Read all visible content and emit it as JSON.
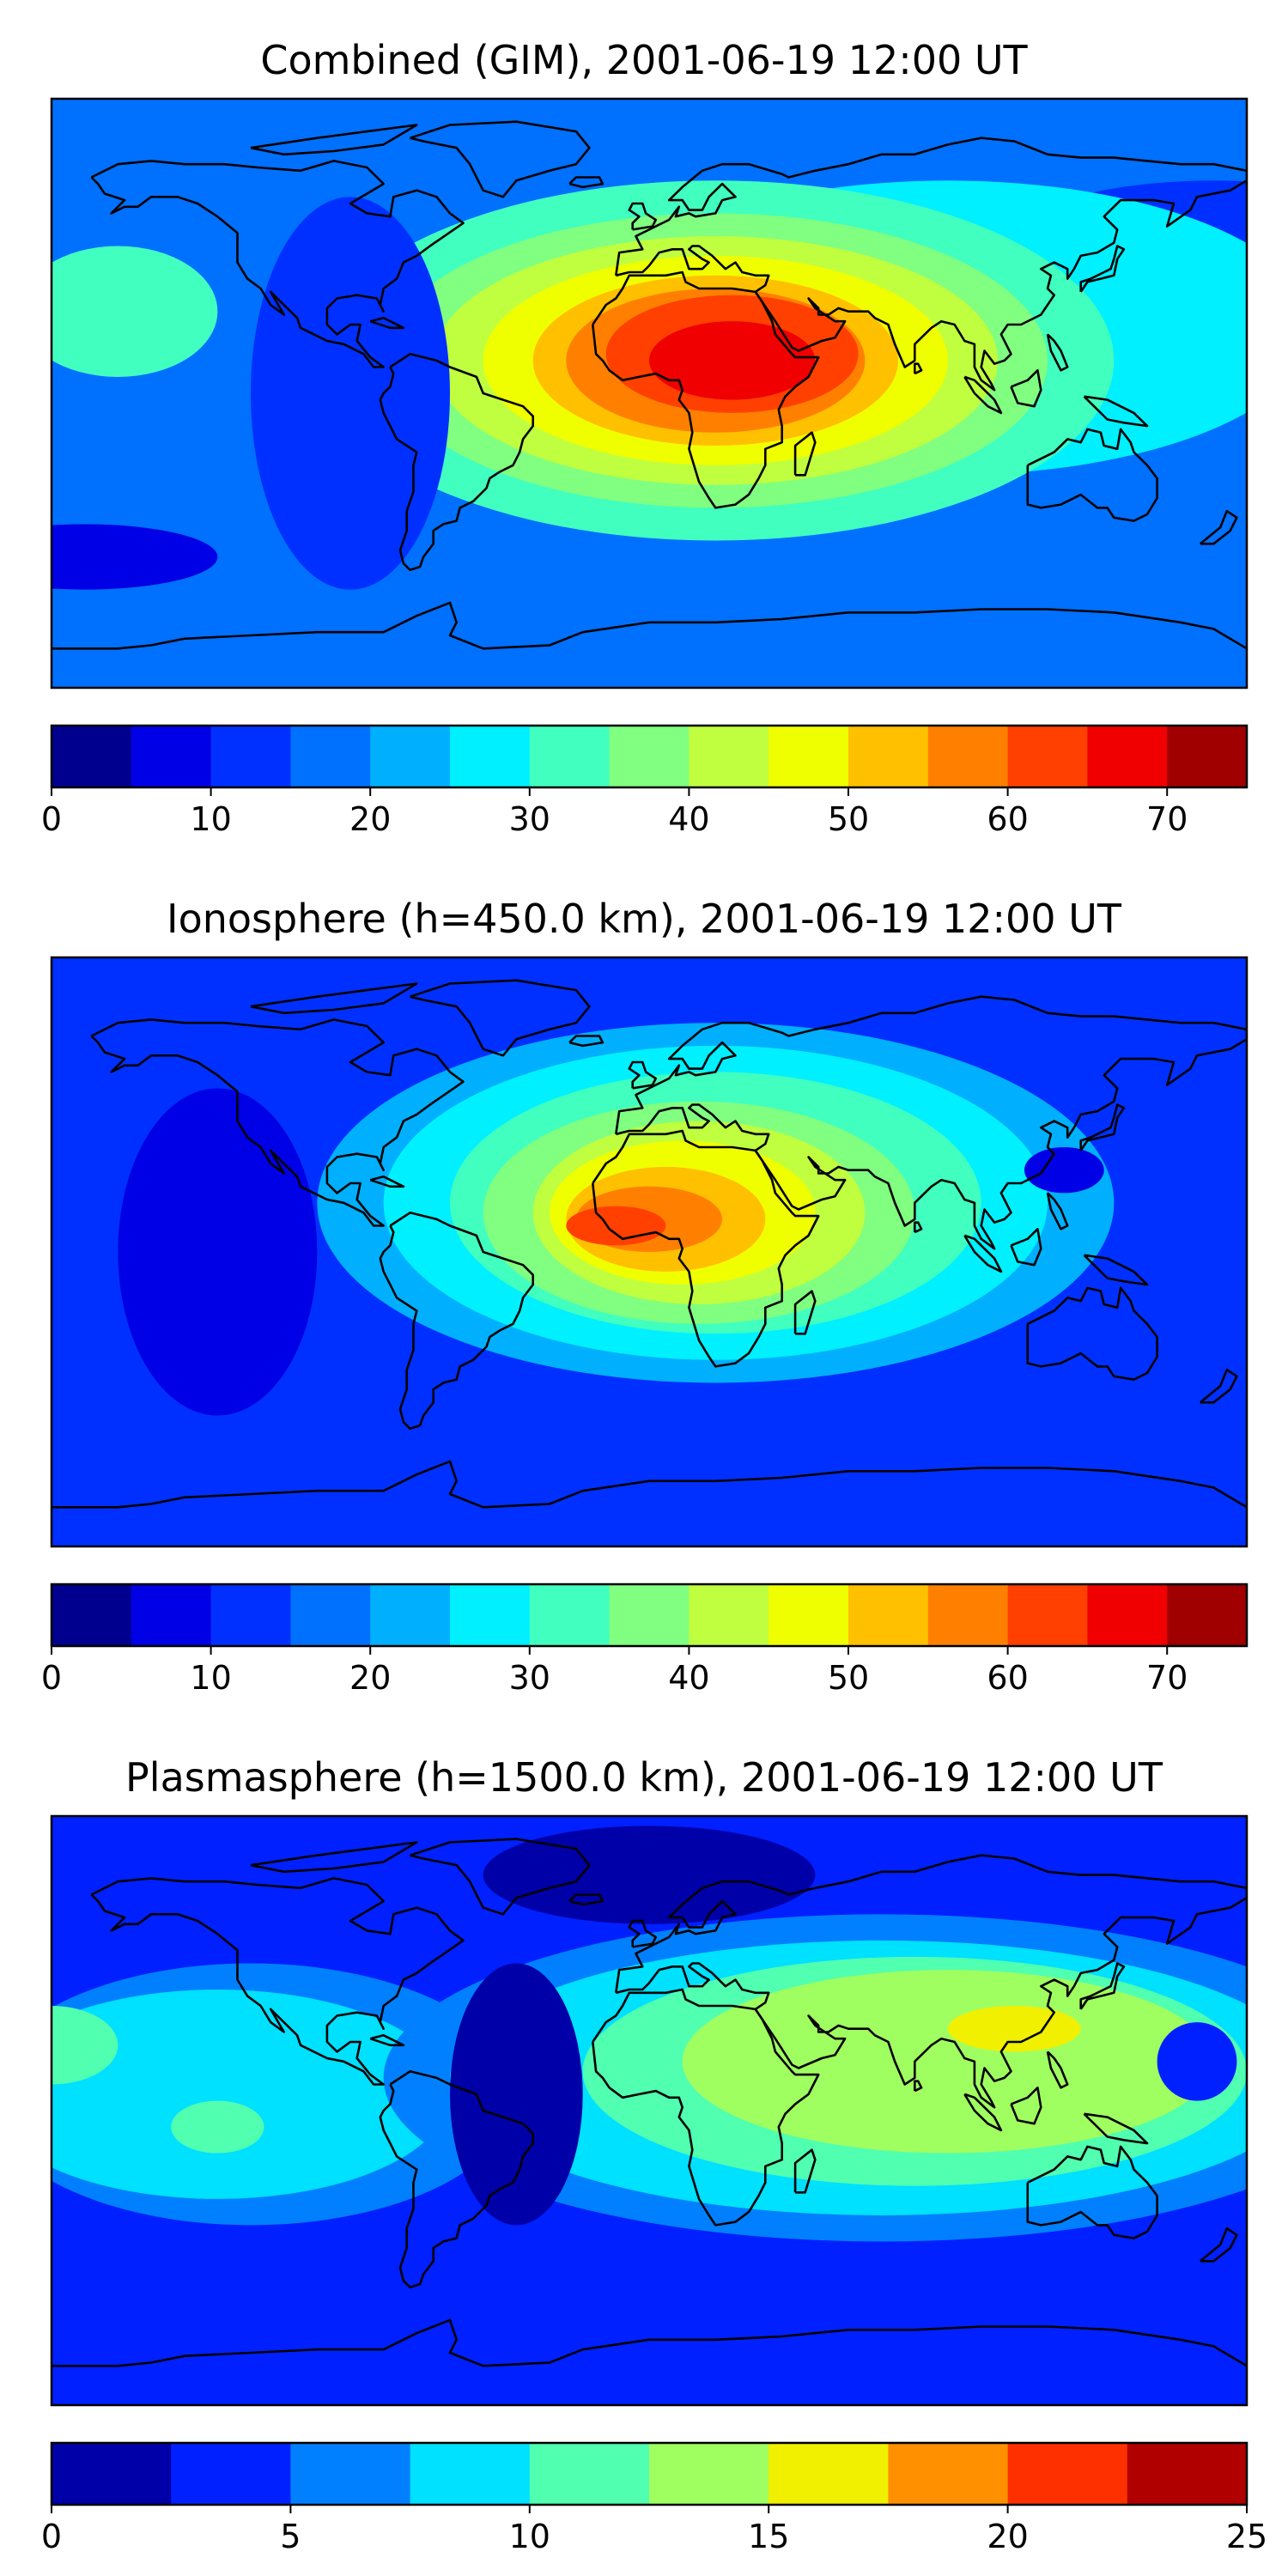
{
  "panels": [
    {
      "title": "Combined (GIM), 2001-06-19 12:00 UT",
      "colorbar": {
        "ticks": [
          "0",
          "10",
          "20",
          "30",
          "40",
          "50",
          "60",
          "70"
        ],
        "vmin": 0,
        "vmax": 75,
        "levels": 15
      },
      "field": {
        "background_level": 3,
        "blobs": [
          {
            "lon": 170,
            "lat": 40,
            "rx": 70,
            "ry": 25,
            "level": 2
          },
          {
            "lon": 90,
            "lat": 20,
            "rx": 110,
            "ry": 45,
            "level": 5
          },
          {
            "lon": -160,
            "lat": 25,
            "rx": 30,
            "ry": 20,
            "level": 6
          },
          {
            "lon": 20,
            "lat": 10,
            "rx": 120,
            "ry": 55,
            "level": 6
          },
          {
            "lon": 20,
            "lat": 10,
            "rx": 100,
            "ry": 45,
            "level": 7
          },
          {
            "lon": 20,
            "lat": 10,
            "rx": 85,
            "ry": 38,
            "level": 8
          },
          {
            "lon": 20,
            "lat": 10,
            "rx": 70,
            "ry": 32,
            "level": 9
          },
          {
            "lon": 20,
            "lat": 10,
            "rx": 55,
            "ry": 26,
            "level": 10
          },
          {
            "lon": 20,
            "lat": 10,
            "rx": 45,
            "ry": 22,
            "level": 11
          },
          {
            "lon": 25,
            "lat": 12,
            "rx": 38,
            "ry": 18,
            "level": 12
          },
          {
            "lon": 25,
            "lat": 10,
            "rx": 25,
            "ry": 12,
            "level": 13
          },
          {
            "lon": -170,
            "lat": -50,
            "rx": 40,
            "ry": 10,
            "level": 1
          },
          {
            "lon": -90,
            "lat": 0,
            "rx": 30,
            "ry": 60,
            "level": 2
          }
        ]
      }
    },
    {
      "title": "Ionosphere  (h=450.0 km), 2001-06-19 12:00 UT",
      "colorbar": {
        "ticks": [
          "0",
          "10",
          "20",
          "30",
          "40",
          "50",
          "60",
          "70"
        ],
        "vmin": 0,
        "vmax": 75,
        "levels": 15
      },
      "field": {
        "background_level": 2,
        "blobs": [
          {
            "lon": -130,
            "lat": 0,
            "rx": 30,
            "ry": 50,
            "level": 1
          },
          {
            "lon": 20,
            "lat": 15,
            "rx": 120,
            "ry": 55,
            "level": 4
          },
          {
            "lon": 20,
            "lat": 15,
            "rx": 100,
            "ry": 48,
            "level": 5
          },
          {
            "lon": 20,
            "lat": 15,
            "rx": 80,
            "ry": 40,
            "level": 6
          },
          {
            "lon": 15,
            "lat": 12,
            "rx": 65,
            "ry": 34,
            "level": 7
          },
          {
            "lon": 15,
            "lat": 12,
            "rx": 50,
            "ry": 28,
            "level": 8
          },
          {
            "lon": 10,
            "lat": 12,
            "rx": 40,
            "ry": 22,
            "level": 9
          },
          {
            "lon": 5,
            "lat": 10,
            "rx": 30,
            "ry": 16,
            "level": 10
          },
          {
            "lon": 0,
            "lat": 10,
            "rx": 22,
            "ry": 10,
            "level": 11
          },
          {
            "lon": -10,
            "lat": 8,
            "rx": 15,
            "ry": 6,
            "level": 12
          },
          {
            "lon": 125,
            "lat": 25,
            "rx": 12,
            "ry": 7,
            "level": 1
          }
        ]
      }
    },
    {
      "title": "Plasmasphere (h=1500.0 km), 2001-06-19 12:00 UT",
      "colorbar": {
        "ticks": [
          "0",
          "5",
          "10",
          "15",
          "20",
          "25"
        ],
        "vmin": 0,
        "vmax": 25,
        "levels": 10
      },
      "field": {
        "background_level": 1,
        "blobs": [
          {
            "lon": -120,
            "lat": 5,
            "rx": 80,
            "ry": 40,
            "level": 2
          },
          {
            "lon": -130,
            "lat": 5,
            "rx": 70,
            "ry": 32,
            "level": 3
          },
          {
            "lon": 70,
            "lat": 10,
            "rx": 150,
            "ry": 50,
            "level": 2
          },
          {
            "lon": 70,
            "lat": 10,
            "rx": 130,
            "ry": 42,
            "level": 3
          },
          {
            "lon": 80,
            "lat": 12,
            "rx": 100,
            "ry": 35,
            "level": 4
          },
          {
            "lon": 90,
            "lat": 15,
            "rx": 80,
            "ry": 28,
            "level": 5
          },
          {
            "lon": 110,
            "lat": 25,
            "rx": 20,
            "ry": 7,
            "level": 6
          },
          {
            "lon": -40,
            "lat": 5,
            "rx": 20,
            "ry": 40,
            "level": 0
          },
          {
            "lon": 0,
            "lat": 72,
            "rx": 50,
            "ry": 15,
            "level": 0
          },
          {
            "lon": 165,
            "lat": 15,
            "rx": 12,
            "ry": 12,
            "level": 1
          },
          {
            "lon": -180,
            "lat": 20,
            "rx": 20,
            "ry": 12,
            "level": 4
          },
          {
            "lon": -130,
            "lat": -5,
            "rx": 14,
            "ry": 8,
            "level": 4
          }
        ]
      }
    }
  ],
  "palettes": {
    "p15": [
      "#00008f",
      "#0000e6",
      "#0030ff",
      "#0070ff",
      "#00b0ff",
      "#00f0ff",
      "#40ffbf",
      "#80ff80",
      "#bfff40",
      "#f0ff00",
      "#ffc000",
      "#ff8000",
      "#ff4000",
      "#f00000",
      "#a00000"
    ],
    "p10": [
      "#0000a8",
      "#0020ff",
      "#0080ff",
      "#00e0ff",
      "#50ffb0",
      "#a0ff60",
      "#f0f000",
      "#ff9000",
      "#ff3000",
      "#b00000"
    ]
  }
}
